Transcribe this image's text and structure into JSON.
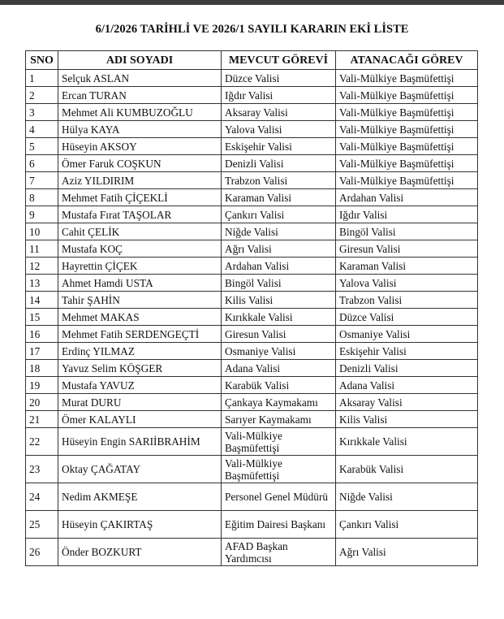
{
  "title": "6/1/2026 TARİHLİ VE 2026/1 SAYILI KARARIN EKİ LİSTE",
  "headers": [
    "SNO",
    "ADI SOYADI",
    "MEVCUT GÖREVİ",
    "ATANACAĞI GÖREV"
  ],
  "rows": [
    [
      "1",
      "Selçuk ASLAN",
      "Düzce Valisi",
      "Vali-Mülkiye Başmüfettişi"
    ],
    [
      "2",
      "Ercan TURAN",
      "Iğdır Valisi",
      "Vali-Mülkiye Başmüfettişi"
    ],
    [
      "3",
      "Mehmet Ali KUMBUZOĞLU",
      "Aksaray Valisi",
      "Vali-Mülkiye Başmüfettişi"
    ],
    [
      "4",
      "Hülya KAYA",
      "Yalova Valisi",
      "Vali-Mülkiye Başmüfettişi"
    ],
    [
      "5",
      "Hüseyin AKSOY",
      "Eskişehir Valisi",
      "Vali-Mülkiye Başmüfettişi"
    ],
    [
      "6",
      "Ömer Faruk COŞKUN",
      "Denizli Valisi",
      "Vali-Mülkiye Başmüfettişi"
    ],
    [
      "7",
      "Aziz YILDIRIM",
      "Trabzon Valisi",
      "Vali-Mülkiye Başmüfettişi"
    ],
    [
      "8",
      "Mehmet Fatih ÇİÇEKLİ",
      "Karaman Valisi",
      "Ardahan Valisi"
    ],
    [
      "9",
      "Mustafa Fırat TAŞOLAR",
      "Çankırı Valisi",
      "Iğdır Valisi"
    ],
    [
      "10",
      "Cahit ÇELİK",
      "Niğde Valisi",
      "Bingöl Valisi"
    ],
    [
      "11",
      "Mustafa KOÇ",
      "Ağrı Valisi",
      "Giresun Valisi"
    ],
    [
      "12",
      "Hayrettin ÇİÇEK",
      "Ardahan Valisi",
      "Karaman Valisi"
    ],
    [
      "13",
      "Ahmet Hamdi USTA",
      "Bingöl Valisi",
      "Yalova Valisi"
    ],
    [
      "14",
      "Tahir ŞAHİN",
      "Kilis Valisi",
      "Trabzon Valisi"
    ],
    [
      "15",
      "Mehmet MAKAS",
      "Kırıkkale Valisi",
      "Düzce Valisi"
    ],
    [
      "16",
      "Mehmet Fatih SERDENGEÇTİ",
      "Giresun Valisi",
      "Osmaniye Valisi"
    ],
    [
      "17",
      "Erdinç YILMAZ",
      "Osmaniye Valisi",
      "Eskişehir Valisi"
    ],
    [
      "18",
      "Yavuz Selim KÖŞGER",
      "Adana Valisi",
      "Denizli Valisi"
    ],
    [
      "19",
      "Mustafa YAVUZ",
      "Karabük Valisi",
      "Adana Valisi"
    ],
    [
      "20",
      "Murat DURU",
      "Çankaya Kaymakamı",
      "Aksaray Valisi"
    ],
    [
      "21",
      "Ömer KALAYLI",
      "Sarıyer Kaymakamı",
      "Kilis Valisi"
    ],
    [
      "22",
      "Hüseyin Engin SARIİBRAHİM",
      "Vali-Mülkiye Başmüfettişi",
      "Kırıkkale Valisi"
    ],
    [
      "23",
      "Oktay ÇAĞATAY",
      "Vali-Mülkiye Başmüfettişi",
      "Karabük Valisi"
    ],
    [
      "24",
      "Nedim AKMEŞE",
      "Personel Genel Müdürü",
      "Niğde Valisi"
    ],
    [
      "25",
      "Hüseyin ÇAKIRTAŞ",
      "Eğitim Dairesi Başkanı",
      "Çankırı Valisi"
    ],
    [
      "26",
      "Önder BOZKURT",
      "AFAD Başkan Yardımcısı",
      "Ağrı Valisi"
    ]
  ]
}
